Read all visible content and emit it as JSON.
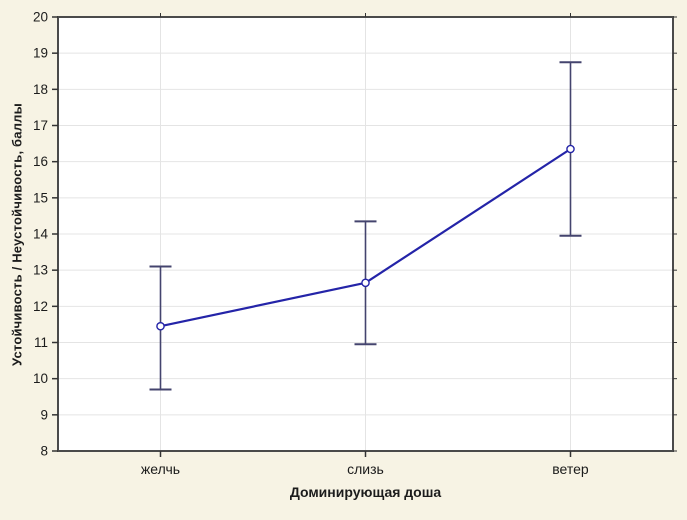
{
  "chart_data": {
    "type": "line",
    "title": "",
    "categories": [
      "желчь",
      "слизь",
      "ветер"
    ],
    "series": [
      {
        "name": "Устойчивость / Неустойчивость",
        "values": [
          11.45,
          12.65,
          16.35
        ],
        "ci_lower": [
          9.7,
          10.95,
          13.95
        ],
        "ci_upper": [
          13.1,
          14.35,
          18.75
        ]
      }
    ],
    "xlabel": "Доминирующая доша",
    "ylabel": "Устойчивость / Неустойчивость, баллы",
    "ylim": [
      8,
      20
    ],
    "ytick_step": 1,
    "ytick_labels": [
      "8",
      "9",
      "10",
      "11",
      "12",
      "13",
      "14",
      "15",
      "16",
      "17",
      "18",
      "19",
      "20"
    ],
    "grid": true,
    "legend_position": "none",
    "marker": "open-circle",
    "colors": {
      "page_background": "#f7f3e4",
      "plot_background": "#ffffff",
      "gridline": "#e4e4e4",
      "frame": "#4a4a4a",
      "line": "#2424a8",
      "marker_fill": "#ffffff",
      "marker_stroke": "#2424a8",
      "error_bar": "#44446e",
      "tick": "#333333",
      "text": "#1c1c1c"
    }
  }
}
